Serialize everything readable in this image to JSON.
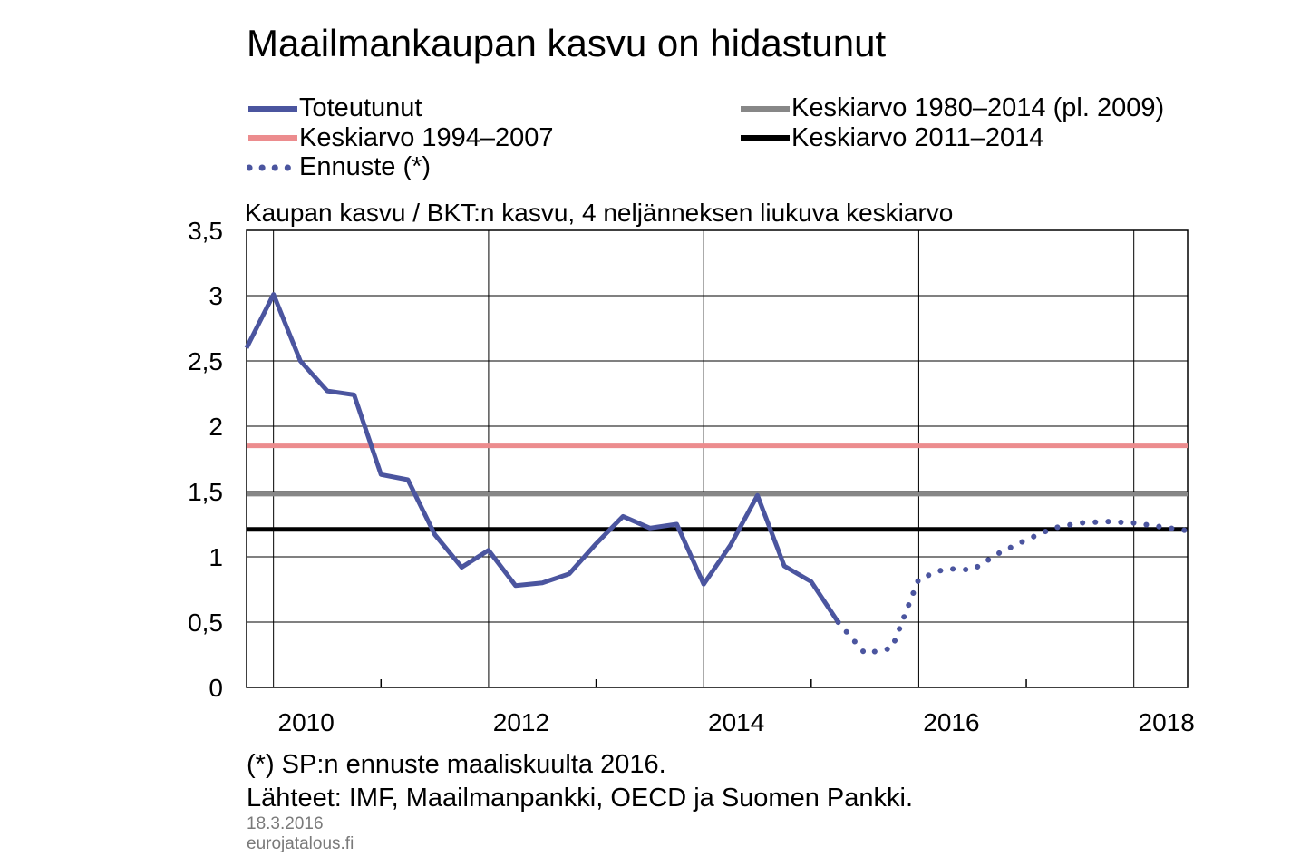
{
  "title": "Maailmankaupan  kasvu on hidastunut",
  "subtitle": "Kaupan kasvu / BKT:n kasvu, 4 neljänneksen liukuva keskiarvo",
  "legend": [
    {
      "label": "Toteutunut",
      "color": "#4B559F",
      "style": "solid"
    },
    {
      "label": "Keskiarvo 1980–2014 (pl. 2009)",
      "color": "#878787",
      "style": "solid"
    },
    {
      "label": "Keskiarvo 1994–2007",
      "color": "#EC8C8E",
      "style": "solid"
    },
    {
      "label": "Keskiarvo 2011–2014",
      "color": "#000000",
      "style": "solid"
    },
    {
      "label": "Ennuste (*)",
      "color": "#4B559F",
      "style": "dotted"
    }
  ],
  "footnote": "(*) SP:n ennuste maaliskuulta 2016.",
  "sources": "Lähteet: IMF, Maailmanpankki, OECD ja Suomen Pankki.",
  "date": "18.3.2016",
  "website": "eurojatalous.fi",
  "chart_data": {
    "type": "line",
    "xlim": [
      2009.75,
      2018.5
    ],
    "ylim": [
      0,
      3.5
    ],
    "x_ticks": [
      2010,
      2012,
      2014,
      2016,
      2018
    ],
    "x_tick_labels": [
      "2010",
      "2012",
      "2014",
      "2016",
      "2018"
    ],
    "y_ticks": [
      0,
      0.5,
      1,
      1.5,
      2,
      2.5,
      3,
      3.5
    ],
    "y_tick_labels": [
      "0",
      "0,5",
      "1",
      "1,5",
      "2",
      "2,5",
      "3",
      "3,5"
    ],
    "grid": true,
    "series": [
      {
        "name": "Toteutunut",
        "style": "solid",
        "color": "#4B559F",
        "x": [
          2009.75,
          2010.0,
          2010.25,
          2010.5,
          2010.75,
          2011.0,
          2011.25,
          2011.5,
          2011.75,
          2012.0,
          2012.25,
          2012.5,
          2012.75,
          2013.0,
          2013.25,
          2013.5,
          2013.75,
          2014.0,
          2014.25,
          2014.5,
          2014.75,
          2015.0,
          2015.25
        ],
        "y": [
          2.6,
          3.01,
          2.5,
          2.27,
          2.24,
          1.63,
          1.59,
          1.17,
          0.92,
          1.05,
          0.78,
          0.8,
          0.87,
          1.1,
          1.31,
          1.22,
          1.25,
          0.79,
          1.09,
          1.47,
          0.93,
          0.81,
          0.5
        ]
      },
      {
        "name": "Ennuste (*)",
        "style": "dotted",
        "color": "#4B559F",
        "x": [
          2015.25,
          2015.5,
          2015.75,
          2016.0,
          2016.25,
          2016.5,
          2016.75,
          2017.0,
          2017.25,
          2017.5,
          2017.75,
          2018.0,
          2018.25,
          2018.5
        ],
        "y": [
          0.5,
          0.26,
          0.3,
          0.83,
          0.91,
          0.9,
          1.03,
          1.13,
          1.22,
          1.26,
          1.27,
          1.26,
          1.23,
          1.2
        ]
      },
      {
        "name": "Keskiarvo 1994–2007",
        "style": "solid",
        "color": "#EC8C8E",
        "x": [
          2009.75,
          2018.5
        ],
        "y": [
          1.85,
          1.85
        ]
      },
      {
        "name": "Keskiarvo 1980–2014 (pl. 2009)",
        "style": "solid",
        "color": "#878787",
        "x": [
          2009.75,
          2018.5
        ],
        "y": [
          1.48,
          1.48
        ]
      },
      {
        "name": "Keskiarvo 2011–2014",
        "style": "solid",
        "color": "#000000",
        "x": [
          2009.75,
          2018.5
        ],
        "y": [
          1.21,
          1.21
        ]
      }
    ]
  }
}
